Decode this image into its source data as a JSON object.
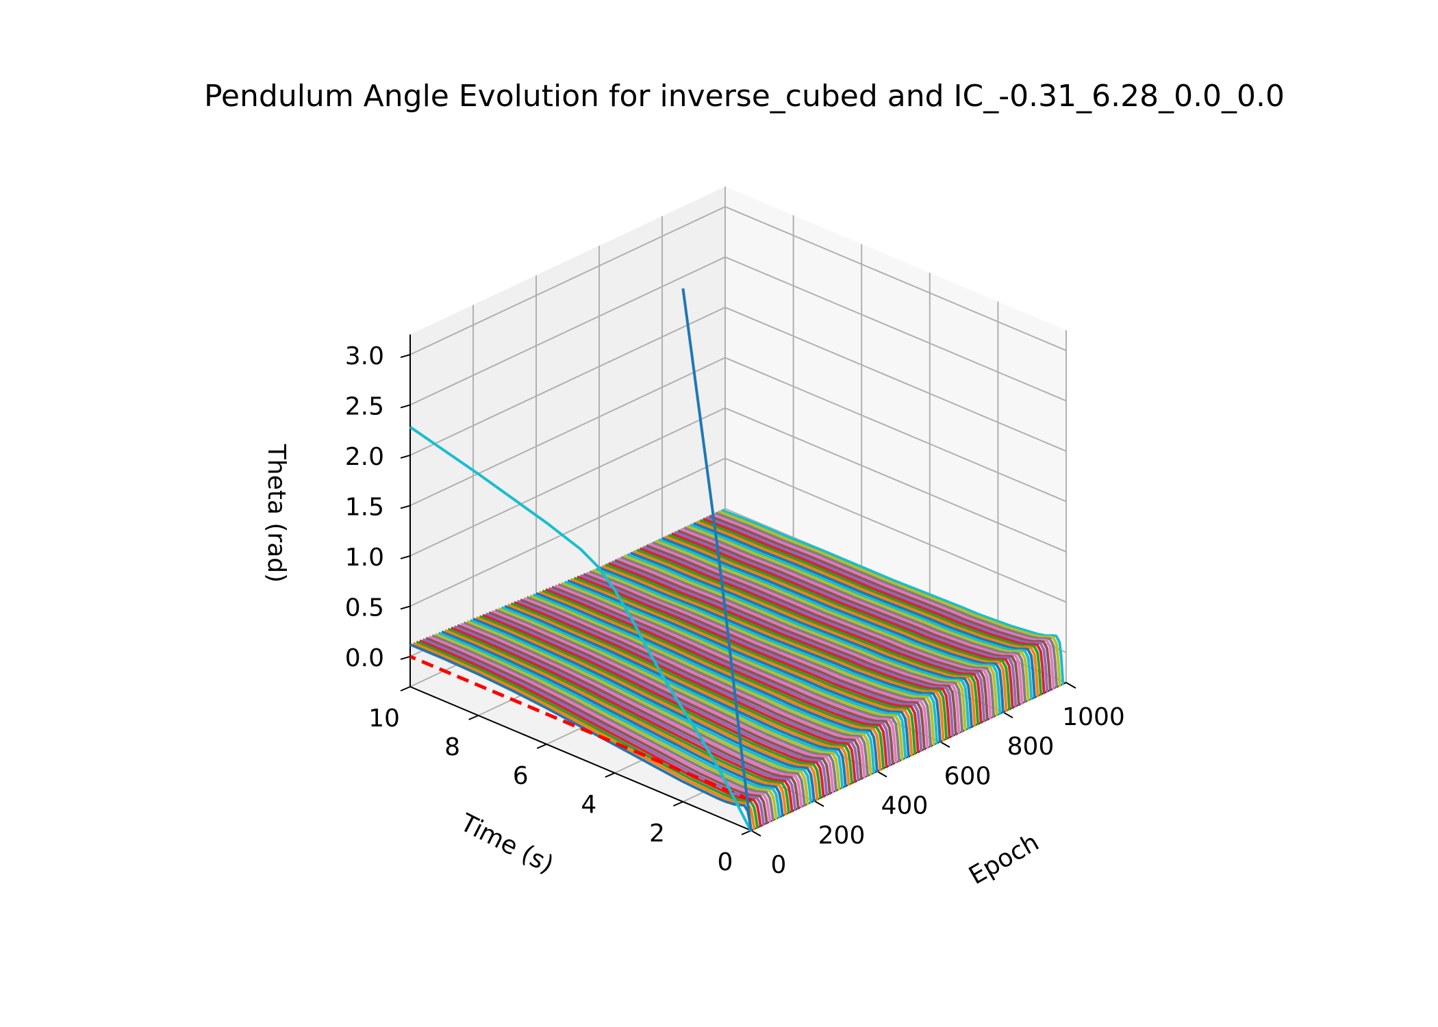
{
  "chart_data": {
    "type": "line",
    "projection": "3d",
    "title": "Pendulum Angle Evolution for inverse_cubed and IC_-0.31_6.28_0.0_0.0",
    "xlabel": "Epoch",
    "ylabel": "Time (s)",
    "zlabel": "Theta (rad)",
    "xlim": [
      0,
      1000
    ],
    "ylim": [
      0,
      10
    ],
    "zlim": [
      -0.3,
      3.2
    ],
    "xticks": [
      "0",
      "200",
      "400",
      "600",
      "800",
      "1000"
    ],
    "yticks": [
      "0",
      "2",
      "4",
      "6",
      "8",
      "10"
    ],
    "zticks": [
      "0.0",
      "0.5",
      "1.0",
      "1.5",
      "2.0",
      "2.5",
      "3.0"
    ],
    "grid": true,
    "epoch_count": 100,
    "epoch_step": 10,
    "time_samples": [
      0,
      0.05,
      0.1,
      0.2,
      0.3,
      0.5,
      0.75,
      1,
      1.5,
      2,
      2.5,
      3,
      4,
      5,
      6,
      7,
      8,
      9,
      10
    ],
    "epoch_trajectory_theta": {
      "early": [
        -0.31,
        -0.2,
        -0.12,
        -0.08,
        -0.09,
        -0.11,
        -0.12,
        -0.12,
        -0.11,
        -0.1,
        -0.08,
        -0.06,
        -0.02,
        0.02,
        0.06,
        0.09,
        0.11,
        0.12,
        0.12
      ],
      "late": [
        -0.31,
        -0.05,
        0.1,
        0.15,
        0.14,
        0.11,
        0.09,
        0.08,
        0.06,
        0.05,
        0.04,
        0.04,
        0.03,
        0.02,
        0.02,
        0.02,
        0.01,
        0.01,
        0.0
      ]
    },
    "reference_line": {
      "name": "",
      "color": "#ff0000",
      "style": "dashed",
      "epoch": 0,
      "time": [
        0,
        10
      ],
      "theta": [
        0,
        0
      ]
    },
    "highlight_series": [
      {
        "name": "",
        "color": "#17becf",
        "epoch": 0,
        "time": [
          0,
          0.5,
          1,
          1.5,
          2,
          2.5,
          3,
          3.5,
          4,
          4.5,
          5,
          5.5,
          6,
          7,
          8,
          9,
          10
        ],
        "theta": [
          -0.31,
          -0.05,
          0.2,
          0.42,
          0.62,
          0.82,
          1.05,
          1.3,
          1.52,
          1.68,
          1.78,
          1.84,
          1.9,
          2.0,
          2.1,
          2.19,
          2.28
        ]
      },
      {
        "name": "",
        "color": "#1f77b4",
        "epoch": 0,
        "time": [
          0,
          0.25,
          0.5,
          0.75,
          1,
          1.25,
          1.5,
          1.75,
          2
        ],
        "theta": [
          -0.31,
          0.35,
          1.05,
          1.75,
          2.4,
          3.0,
          3.6,
          4.2,
          4.8
        ]
      }
    ],
    "colors": [
      "#1f77b4",
      "#ff7f0e",
      "#2ca02c",
      "#d62728",
      "#9467bd",
      "#8c564b",
      "#e377c2",
      "#7f7f7f",
      "#bcbd22",
      "#17becf"
    ]
  }
}
